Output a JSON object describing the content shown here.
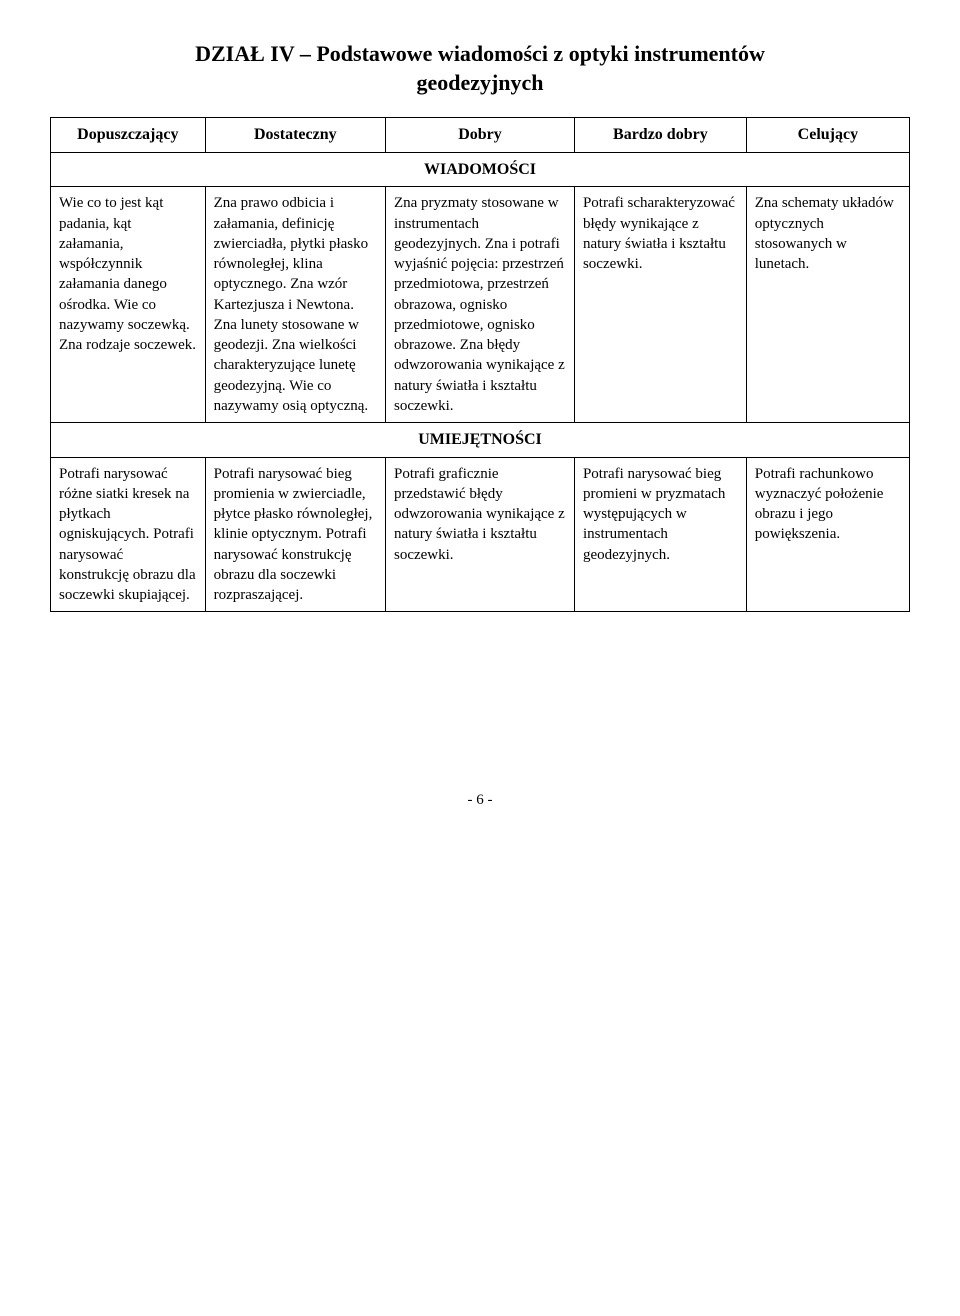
{
  "title_line1": "DZIAŁ IV – Podstawowe wiadomości z optyki instrumentów",
  "title_line2": "geodezyjnych",
  "headers": {
    "c1": "Dopuszczający",
    "c2": "Dostateczny",
    "c3": "Dobry",
    "c4": "Bardzo dobry",
    "c5": "Celujący"
  },
  "section1_label": "WIADOMOŚCI",
  "section2_label": "UMIEJĘTNOŚCI",
  "row1": {
    "c1": "Wie co to jest kąt padania, kąt załamania, współczynnik załamania danego ośrodka. Wie co nazywamy soczewką. Zna rodzaje soczewek.",
    "c2": "Zna prawo odbicia i załamania, definicję zwierciadła, płytki płasko równoległej, klina optycznego. Zna wzór Kartezjusza i Newtona. Zna lunety stosowane w geodezji. Zna wielkości charakteryzujące lunetę geodezyjną. Wie co nazywamy osią optyczną.",
    "c3": "Zna pryzmaty stosowane w instrumentach geodezyjnych. Zna i potrafi wyjaśnić pojęcia: przestrzeń przedmiotowa, przestrzeń obrazowa, ognisko przedmiotowe, ognisko obrazowe. Zna błędy odwzorowania wynikające z natury światła i kształtu soczewki.",
    "c4": "Potrafi scharakteryzować błędy wynikające z natury światła i kształtu soczewki.",
    "c5": "Zna schematy układów optycznych stosowanych w lunetach."
  },
  "row2": {
    "c1": "Potrafi narysować różne siatki kresek na płytkach ogniskujących. Potrafi narysować konstrukcję obrazu dla soczewki skupiającej.",
    "c2": "Potrafi narysować bieg promienia w zwierciadle, płytce płasko równoległej, klinie optycznym. Potrafi narysować konstrukcję obrazu dla soczewki rozpraszającej.",
    "c3": "Potrafi graficznie przedstawić błędy odwzorowania wynikające z natury światła i kształtu soczewki.",
    "c4": "Potrafi narysować bieg promieni w pryzmatach występujących w instrumentach geodezyjnych.",
    "c5": "Potrafi rachunkowo wyznaczyć położenie obrazu i jego powiększenia."
  },
  "page_number": "- 6 -"
}
